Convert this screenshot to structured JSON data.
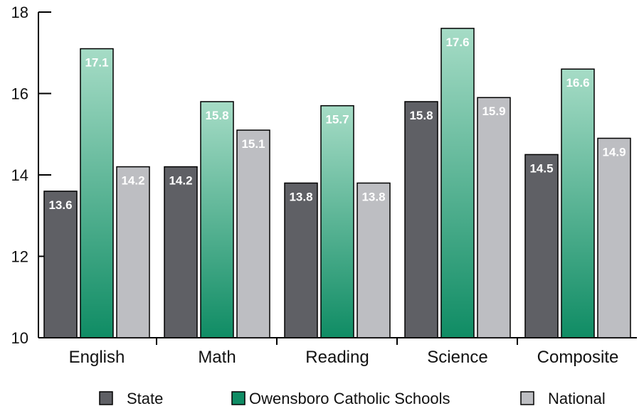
{
  "chart_data": {
    "type": "bar",
    "categories": [
      "English",
      "Math",
      "Reading",
      "Science",
      "Composite"
    ],
    "series": [
      {
        "name": "State",
        "values": [
          13.6,
          14.2,
          13.8,
          15.8,
          14.5
        ],
        "color": "#5f6065"
      },
      {
        "name": "Owensboro Catholic Schools",
        "values": [
          17.1,
          15.8,
          15.7,
          17.6,
          16.6
        ],
        "color": "#0f8c64"
      },
      {
        "name": "National",
        "values": [
          14.2,
          15.1,
          13.8,
          15.9,
          14.9
        ],
        "color": "#bdbec2"
      }
    ],
    "yticks": [
      "10",
      "12",
      "14",
      "16",
      "18"
    ],
    "ylim": [
      10,
      18
    ],
    "legend_position": "bottom",
    "grid": false
  }
}
